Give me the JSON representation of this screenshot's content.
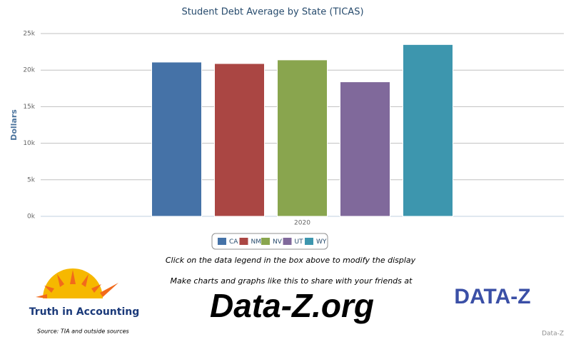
{
  "chart_data": {
    "type": "bar",
    "title": "Student Debt Average by State (TICAS)",
    "y_label": "Dollars",
    "categories": [
      "2020"
    ],
    "series": [
      {
        "name": "CA",
        "color": "#4572a7",
        "values": [
          21100
        ]
      },
      {
        "name": "NM",
        "color": "#aa4643",
        "values": [
          20900
        ]
      },
      {
        "name": "NV",
        "color": "#89a54e",
        "values": [
          21400
        ]
      },
      {
        "name": "UT",
        "color": "#80699b",
        "values": [
          18400
        ]
      },
      {
        "name": "WY",
        "color": "#3d96ae",
        "values": [
          23500
        ]
      }
    ],
    "ylim": [
      0,
      25000
    ],
    "yticks": [
      {
        "value": 0,
        "label": "0k"
      },
      {
        "value": 5000,
        "label": "5k"
      },
      {
        "value": 10000,
        "label": "10k"
      },
      {
        "value": 15000,
        "label": "15k"
      },
      {
        "value": 20000,
        "label": "20k"
      },
      {
        "value": 25000,
        "label": "25k"
      }
    ],
    "grid": true
  },
  "footer": {
    "hint": "Click on the data legend in the box above to modify the display",
    "promo": "Make charts and graphs like this to share with your friends at",
    "site": "Data-Z.org",
    "tia": "Truth in Accounting",
    "brand": "DATA-Z",
    "source": "Source: TIA and outside sources",
    "credit": "Data-Z"
  }
}
